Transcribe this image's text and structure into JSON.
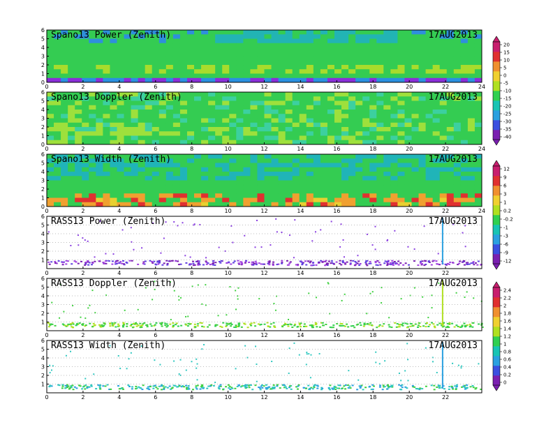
{
  "chart_data": [
    {
      "type": "heatmap",
      "title": "Spano13 Power (Zenith)",
      "date": "17AUG2013",
      "xlim": [
        0,
        24
      ],
      "ylim": [
        0,
        6
      ],
      "xticks": [
        0,
        2,
        4,
        6,
        8,
        10,
        12,
        14,
        16,
        18,
        20,
        22,
        24
      ],
      "yticks": [
        0,
        1,
        2,
        3,
        4,
        5,
        6
      ],
      "colorbar": {
        "ticks": [
          20,
          15,
          10,
          5,
          0,
          -5,
          -10,
          -15,
          -20,
          -25,
          -30,
          -35,
          -40
        ],
        "range": [
          -45,
          22
        ],
        "colors": [
          "#7a1fb0",
          "#3a4fe0",
          "#2aa0e0",
          "#18c4b4",
          "#30d050",
          "#b0e020",
          "#f0d030",
          "#f09030",
          "#e03030",
          "#c81e6e"
        ]
      },
      "shared_colorbar": "power-doppler"
    },
    {
      "type": "heatmap",
      "title": "Spano13 Doppler (Zenith)",
      "date": "17AUG2013",
      "xlim": [
        0,
        24
      ],
      "ylim": [
        0,
        6
      ],
      "xticks": [
        0,
        2,
        4,
        6,
        8,
        10,
        12,
        14,
        16,
        18,
        20,
        22,
        24
      ],
      "yticks": [
        0,
        1,
        2,
        3,
        4,
        5,
        6
      ]
    },
    {
      "type": "heatmap",
      "title": "Spano13 Width (Zenith)",
      "date": "17AUG2013",
      "xlim": [
        0,
        24
      ],
      "ylim": [
        0,
        6
      ],
      "xticks": [
        0,
        2,
        4,
        6,
        8,
        10,
        12,
        14,
        16,
        18,
        20,
        22,
        24
      ],
      "yticks": [
        0,
        1,
        2,
        3,
        4,
        5,
        6
      ],
      "colorbar": {
        "ticks": [
          12,
          9,
          6,
          3,
          1,
          0.2,
          -0.2,
          -1,
          -3,
          -6,
          -9,
          -12
        ],
        "colors": [
          "#7a1fb0",
          "#3a4fe0",
          "#2aa0e0",
          "#18c4b4",
          "#30d050",
          "#b0e020",
          "#f0d030",
          "#f09030",
          "#e03030",
          "#c81e6e"
        ]
      },
      "shared_colorbar": "width-rasspower"
    },
    {
      "type": "scatter",
      "title": "RASS13 Power (Zenith)",
      "date": "17AUG2013",
      "xlim": [
        0,
        24
      ],
      "ylim": [
        0,
        6
      ],
      "xticks": [
        0,
        2,
        4,
        6,
        8,
        10,
        12,
        14,
        16,
        18,
        20,
        22
      ],
      "yticks": [
        1,
        2,
        3,
        4,
        5,
        6
      ],
      "dominant_color": "#8a3fe0"
    },
    {
      "type": "scatter",
      "title": "RASS13 Doppler (Zenith)",
      "date": "17AUG2013",
      "xlim": [
        0,
        24
      ],
      "ylim": [
        0,
        6
      ],
      "xticks": [
        0,
        2,
        4,
        6,
        8,
        10,
        12,
        14,
        16,
        18,
        20,
        22
      ],
      "yticks": [
        1,
        2,
        3,
        4,
        5,
        6
      ],
      "colorbar": {
        "ticks": [
          2.4,
          2.2,
          2,
          1.8,
          1.6,
          1.4,
          1.2,
          1,
          0.8,
          0.6,
          0.4,
          0.2,
          0
        ],
        "colors": [
          "#7a1fb0",
          "#3a4fe0",
          "#2aa0e0",
          "#18c4b4",
          "#30d050",
          "#b0e020",
          "#f0d030",
          "#f09030",
          "#e03030",
          "#c81e6e"
        ]
      },
      "shared_colorbar": "rass-doppler-width",
      "dominant_color": "#40d040"
    },
    {
      "type": "scatter",
      "title": "RASS13 Width (Zenith)",
      "date": "17AUG2013",
      "xlim": [
        0,
        24
      ],
      "ylim": [
        0,
        6
      ],
      "xticks": [
        0,
        2,
        4,
        6,
        8,
        10,
        12,
        14,
        16,
        18,
        20,
        22
      ],
      "yticks": [
        1,
        2,
        3,
        4,
        5,
        6
      ],
      "dominant_color": "#30c8c0"
    }
  ]
}
